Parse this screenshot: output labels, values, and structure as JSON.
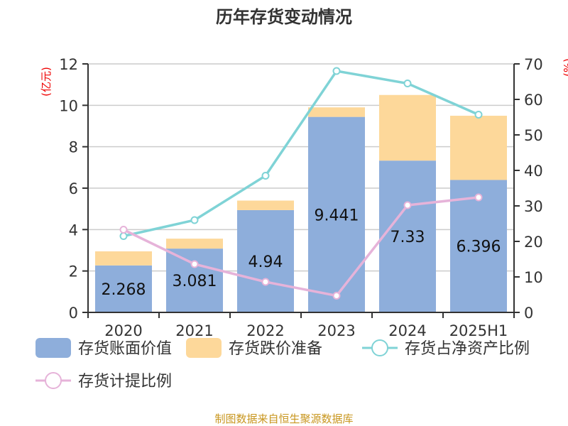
{
  "chart_data": {
    "type": "bar",
    "title": "历年存货变动情况",
    "ylabel_left": "(亿元)",
    "ylabel_right": "(%)",
    "categories": [
      "2020",
      "2021",
      "2022",
      "2023",
      "2024",
      "2025H1"
    ],
    "ylim_left": [
      0,
      12
    ],
    "yticks_left": [
      0,
      2,
      4,
      6,
      8,
      10,
      12
    ],
    "ylim_right": [
      0,
      70
    ],
    "yticks_right": [
      0,
      10,
      20,
      30,
      40,
      50,
      60,
      70
    ],
    "grid": true,
    "legend_placement": "bottom",
    "series": [
      {
        "name": "存货账面价值",
        "kind": "bar",
        "stack": "a",
        "axis": "left",
        "color": "#8eaedb",
        "values": [
          2.268,
          3.081,
          4.94,
          9.441,
          7.33,
          6.396
        ],
        "labels": [
          "2.268",
          "3.081",
          "4.94",
          "9.441",
          "7.33",
          "6.396"
        ]
      },
      {
        "name": "存货跌价准备",
        "kind": "bar",
        "stack": "a",
        "axis": "left",
        "color": "#fdd89a",
        "values": [
          0.68,
          0.48,
          0.46,
          0.46,
          3.17,
          3.1
        ]
      },
      {
        "name": "存货占净资产比例",
        "kind": "line",
        "axis": "right",
        "color": "#7fd3d6",
        "values": [
          21.5,
          26.0,
          38.5,
          68.0,
          64.5,
          55.7
        ]
      },
      {
        "name": "存货计提比例",
        "kind": "line",
        "axis": "right",
        "color": "#e6b3d9",
        "values": [
          23.3,
          13.6,
          8.6,
          4.7,
          30.2,
          32.4
        ]
      }
    ]
  },
  "footer": {
    "source": "制图数据来自恒生聚源数据库"
  }
}
